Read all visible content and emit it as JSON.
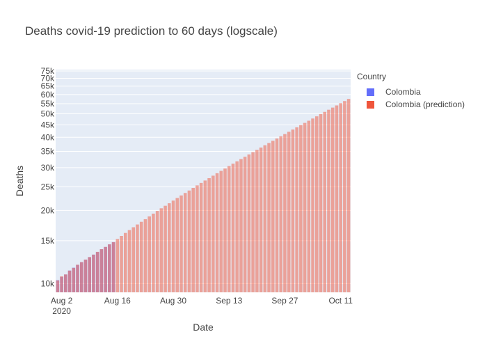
{
  "chart_data": {
    "type": "bar",
    "title": "Deaths covid-19 prediction to 60 days (logscale)",
    "xlabel": "Date",
    "ylabel": "Deaths",
    "y_scale": "log",
    "ylim": [
      9200,
      76000
    ],
    "xlim": [
      "2020-08-01",
      "2020-10-13"
    ],
    "x_ticks": [
      {
        "date": "2020-08-02",
        "label": "Aug 2",
        "sublabel": "2020"
      },
      {
        "date": "2020-08-16",
        "label": "Aug 16"
      },
      {
        "date": "2020-08-30",
        "label": "Aug 30"
      },
      {
        "date": "2020-09-13",
        "label": "Sep 13"
      },
      {
        "date": "2020-09-27",
        "label": "Sep 27"
      },
      {
        "date": "2020-10-11",
        "label": "Oct 11"
      }
    ],
    "y_ticks": [
      {
        "value": 10000,
        "label": "10k"
      },
      {
        "value": 15000,
        "label": "15k"
      },
      {
        "value": 20000,
        "label": "20k"
      },
      {
        "value": 25000,
        "label": "25k"
      },
      {
        "value": 30000,
        "label": "30k"
      },
      {
        "value": 35000,
        "label": "35k"
      },
      {
        "value": 40000,
        "label": "40k"
      },
      {
        "value": 45000,
        "label": "45k"
      },
      {
        "value": 50000,
        "label": "50k"
      },
      {
        "value": 55000,
        "label": "55k"
      },
      {
        "value": 60000,
        "label": "60k"
      },
      {
        "value": 65000,
        "label": "65k"
      },
      {
        "value": 70000,
        "label": "70k"
      },
      {
        "value": 75000,
        "label": "75k"
      }
    ],
    "legend": {
      "title": "Country",
      "position": "top-right"
    },
    "grid": true,
    "series": [
      {
        "name": "Colombia",
        "color": "#636efa",
        "x": [
          "2020-08-01",
          "2020-08-02",
          "2020-08-03",
          "2020-08-04",
          "2020-08-05",
          "2020-08-06",
          "2020-08-07",
          "2020-08-08",
          "2020-08-09",
          "2020-08-10",
          "2020-08-11",
          "2020-08-12",
          "2020-08-13",
          "2020-08-14",
          "2020-08-15"
        ],
        "values": [
          10330,
          10650,
          10896,
          11315,
          11624,
          11939,
          12250,
          12540,
          12842,
          13154,
          13475,
          13837,
          14143,
          14492,
          14810
        ]
      },
      {
        "name": "Colombia (prediction)",
        "color": "#ef553b",
        "x": [
          "2020-08-01",
          "2020-08-02",
          "2020-08-03",
          "2020-08-04",
          "2020-08-05",
          "2020-08-06",
          "2020-08-07",
          "2020-08-08",
          "2020-08-09",
          "2020-08-10",
          "2020-08-11",
          "2020-08-12",
          "2020-08-13",
          "2020-08-14",
          "2020-08-15",
          "2020-08-16",
          "2020-08-17",
          "2020-08-18",
          "2020-08-19",
          "2020-08-20",
          "2020-08-21",
          "2020-08-22",
          "2020-08-23",
          "2020-08-24",
          "2020-08-25",
          "2020-08-26",
          "2020-08-27",
          "2020-08-28",
          "2020-08-29",
          "2020-08-30",
          "2020-08-31",
          "2020-09-01",
          "2020-09-02",
          "2020-09-03",
          "2020-09-04",
          "2020-09-05",
          "2020-09-06",
          "2020-09-07",
          "2020-09-08",
          "2020-09-09",
          "2020-09-10",
          "2020-09-11",
          "2020-09-12",
          "2020-09-13",
          "2020-09-14",
          "2020-09-15",
          "2020-09-16",
          "2020-09-17",
          "2020-09-18",
          "2020-09-19",
          "2020-09-20",
          "2020-09-21",
          "2020-09-22",
          "2020-09-23",
          "2020-09-24",
          "2020-09-25",
          "2020-09-26",
          "2020-09-27",
          "2020-09-28",
          "2020-09-29",
          "2020-09-30",
          "2020-10-01",
          "2020-10-02",
          "2020-10-03",
          "2020-10-04",
          "2020-10-05",
          "2020-10-06",
          "2020-10-07",
          "2020-10-08",
          "2020-10-09",
          "2020-10-10",
          "2020-10-11",
          "2020-10-12",
          "2020-10-13"
        ],
        "values": [
          10300,
          10700,
          10900,
          11300,
          11600,
          11950,
          12250,
          12550,
          12850,
          13150,
          13500,
          13850,
          14150,
          14500,
          14800,
          15250,
          15700,
          16150,
          16600,
          17050,
          17500,
          17950,
          18400,
          18900,
          19400,
          19900,
          20400,
          20900,
          21400,
          21950,
          22500,
          23050,
          23600,
          24150,
          24750,
          25350,
          25950,
          26550,
          27150,
          27800,
          28450,
          29100,
          29750,
          30450,
          31150,
          31850,
          32550,
          33250,
          34000,
          34750,
          35500,
          36300,
          37100,
          37900,
          38700,
          39550,
          40400,
          41250,
          42150,
          43050,
          43950,
          44900,
          45850,
          46800,
          47800,
          48800,
          49850,
          50900,
          51950,
          53000,
          54100,
          55250,
          56400,
          57550
        ]
      }
    ]
  }
}
